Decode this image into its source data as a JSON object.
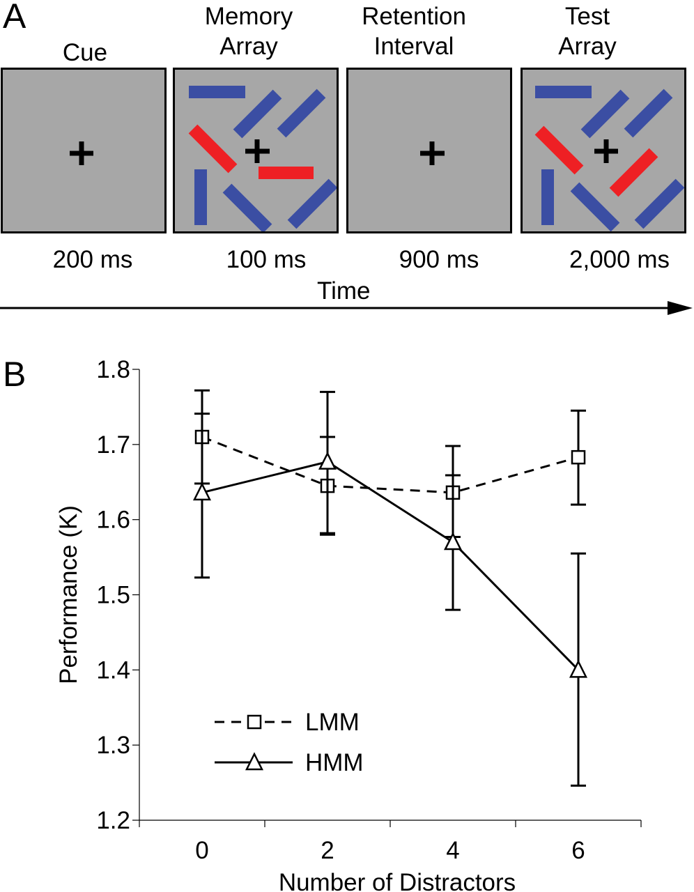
{
  "panel_a": {
    "letter": "A",
    "frames": [
      {
        "label": "Cue",
        "duration": "200 ms"
      },
      {
        "label": "Memory\nArray",
        "duration": "100 ms"
      },
      {
        "label": "Retention\nInterval",
        "duration": "900 ms"
      },
      {
        "label": "Test\nArray",
        "duration": "2,000 ms"
      }
    ],
    "time_label": "Time",
    "colors": {
      "frame_bg": "#a7a7a7",
      "blue_bar": "#3b4ea3",
      "red_bar": "#ee2024"
    }
  },
  "panel_b": {
    "letter": "B"
  },
  "chart_data": {
    "type": "line",
    "xlabel": "Number of Distractors",
    "ylabel": "Performance (K)",
    "x": [
      0,
      2,
      4,
      6
    ],
    "ylim": [
      1.2,
      1.8
    ],
    "yticks": [
      1.2,
      1.3,
      1.4,
      1.5,
      1.6,
      1.7,
      1.8
    ],
    "xticks": [
      0,
      2,
      4,
      6
    ],
    "legend_position": "bottom-left",
    "series": [
      {
        "name": "LMM",
        "style": "dashed",
        "marker": "square",
        "values": [
          1.71,
          1.645,
          1.636,
          1.683
        ],
        "err_low": [
          1.648,
          1.582,
          1.577,
          1.62
        ],
        "err_high": [
          1.772,
          1.71,
          1.698,
          1.745
        ]
      },
      {
        "name": "HMM",
        "style": "solid",
        "marker": "triangle",
        "values": [
          1.636,
          1.677,
          1.57,
          1.4
        ],
        "err_low": [
          1.523,
          1.58,
          1.48,
          1.246
        ],
        "err_high": [
          1.741,
          1.77,
          1.659,
          1.555
        ]
      }
    ]
  }
}
